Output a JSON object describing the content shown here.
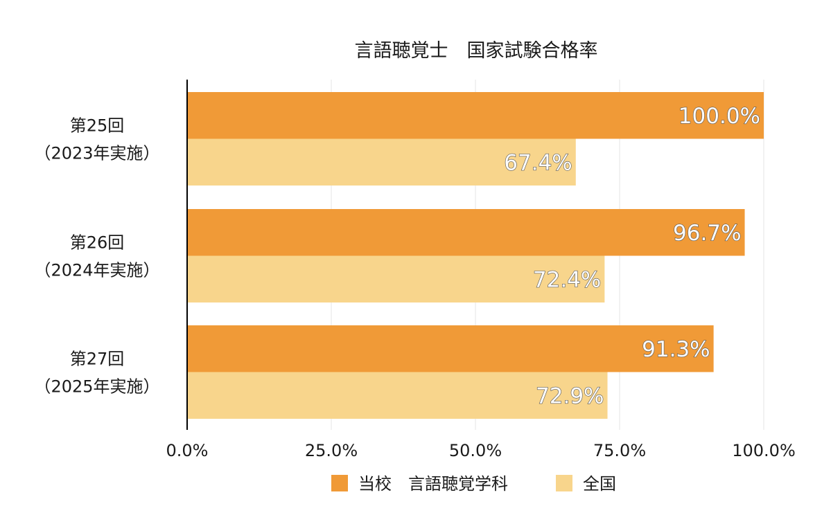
{
  "chart_data": {
    "type": "bar",
    "orientation": "horizontal",
    "title": "言語聴覚士　国家試験合格率",
    "categories": [
      [
        "第25回",
        "（2023年実施）"
      ],
      [
        "第26回",
        "（2024年実施）"
      ],
      [
        "第27回",
        "（2025年実施）"
      ]
    ],
    "series": [
      {
        "name": "当校　言語聴覚学科",
        "color": "#F09A37",
        "values": [
          100.0,
          96.7,
          91.3
        ],
        "labels": [
          "100.0%",
          "96.7%",
          "91.3%"
        ]
      },
      {
        "name": "全国",
        "color": "#F8D58C",
        "values": [
          67.4,
          72.4,
          72.9
        ],
        "labels": [
          "67.4%",
          "72.4%",
          "72.9%"
        ]
      }
    ],
    "xlim": [
      0,
      100
    ],
    "xticks": [
      0,
      25,
      50,
      75,
      100
    ],
    "xtick_labels": [
      "0.0%",
      "25.0%",
      "50.0%",
      "75.0%",
      "100.0%"
    ],
    "grid": true,
    "legend": "bottom"
  }
}
